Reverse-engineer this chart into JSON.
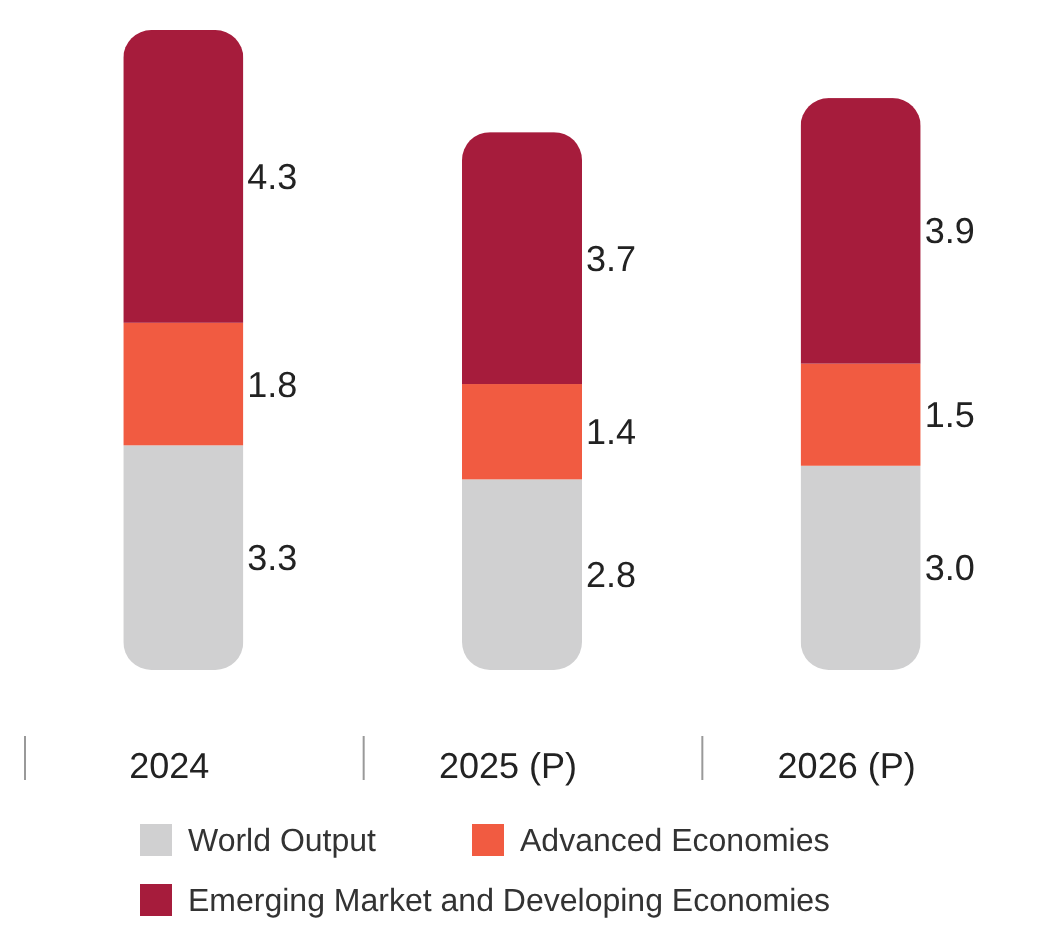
{
  "chart_data": {
    "type": "bar",
    "stacked": true,
    "legend": "bottom",
    "tick_labels": "x",
    "categories": [
      "2024",
      "2025 (P)",
      "2026 (P)"
    ],
    "series": [
      {
        "name": "World Output",
        "color": "#d0d0d1",
        "values": [
          3.3,
          2.8,
          3.0
        ],
        "value_labels": [
          "3.3",
          "2.8",
          "3.0"
        ]
      },
      {
        "name": "Advanced Economies",
        "color": "#f15b41",
        "values": [
          1.8,
          1.4,
          1.5
        ],
        "value_labels": [
          "1.8",
          "1.4",
          "1.5"
        ]
      },
      {
        "name": "Emerging Market and Developing Economies",
        "color": "#a61c3c",
        "values": [
          4.3,
          3.7,
          3.9
        ],
        "value_labels": [
          "4.3",
          "3.7",
          "3.9"
        ]
      }
    ]
  }
}
